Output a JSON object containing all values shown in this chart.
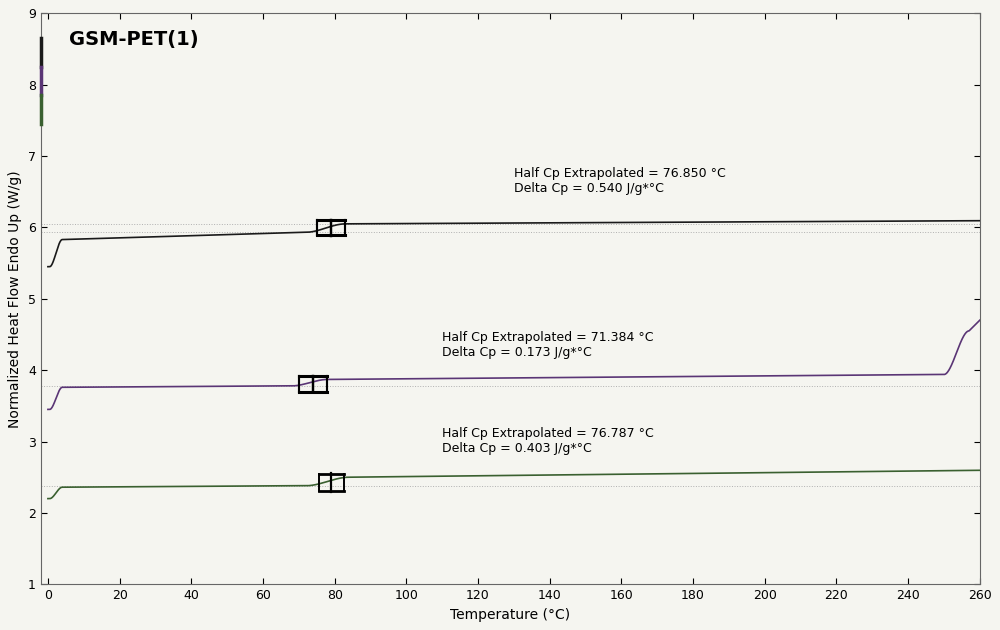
{
  "title": "GSM-PET(1)",
  "xlabel": "Temperature (°C)",
  "ylabel": "Normalized Heat Flow Endo Up (W/g)",
  "xlim": [
    -2,
    260
  ],
  "ylim": [
    1,
    9
  ],
  "xticks": [
    0,
    20,
    40,
    60,
    80,
    100,
    120,
    140,
    160,
    180,
    200,
    220,
    240,
    260
  ],
  "yticks": [
    1,
    2,
    3,
    4,
    5,
    6,
    7,
    8,
    9
  ],
  "bg_color": "#f5f5f0",
  "curve1_color": "#1a1a1a",
  "curve2_color": "#5a3575",
  "curve3_color": "#3a6030",
  "dotted_color": "#b0b0b0",
  "marker_color": "#000000",
  "ann1_x": 130,
  "ann1_y": 6.85,
  "ann1_text": "Half Cp Extrapolated = 76.850 °C\nDelta Cp = 0.540 J/g*°C",
  "ann2_x": 110,
  "ann2_y": 4.55,
  "ann2_text": "Half Cp Extrapolated = 71.384 °C\nDelta Cp = 0.173 J/g*°C",
  "ann3_x": 110,
  "ann3_y": 3.2,
  "ann3_text": "Half Cp Extrapolated = 76.787 °C\nDelta Cp = 0.403 J/g*°C",
  "title_fontsize": 14,
  "axis_fontsize": 10,
  "tick_fontsize": 9,
  "ann_fontsize": 9
}
